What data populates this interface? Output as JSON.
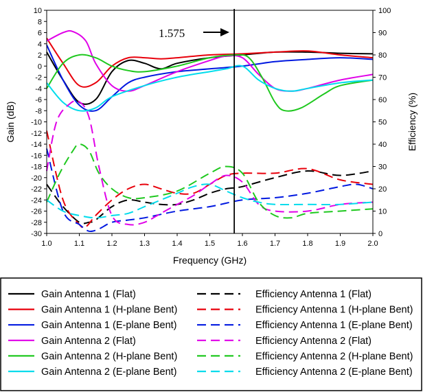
{
  "chart_data": {
    "type": "line",
    "xlabel": "Frequency (GHz)",
    "ylabel": "Gain (dB)",
    "y2label": "Efficiency (%)",
    "xlim": [
      1.0,
      2.0
    ],
    "ylim": [
      -30,
      10
    ],
    "y2lim": [
      0,
      100
    ],
    "xticks": [
      "1.0",
      "1.1",
      "1.2",
      "1.3",
      "1.4",
      "1.5",
      "1.6",
      "1.7",
      "1.8",
      "1.9",
      "2.0"
    ],
    "yticks": [
      "-30",
      "-28",
      "-26",
      "-24",
      "-22",
      "-20",
      "-18",
      "-16",
      "-14",
      "-12",
      "-10",
      "-8",
      "-6",
      "-4",
      "-2",
      "0",
      "2",
      "4",
      "6",
      "8",
      "10"
    ],
    "y2ticks": [
      "0",
      "10",
      "20",
      "30",
      "40",
      "50",
      "60",
      "70",
      "80",
      "90",
      "100"
    ],
    "annotation": {
      "text": "1.575",
      "x": 1.575
    },
    "colors": {
      "black": "#000000",
      "red": "#e8000b",
      "blue": "#0018e0",
      "magenta": "#e000e8",
      "green": "#1ec81e",
      "cyan": "#00dcec"
    },
    "series": [
      {
        "name": "Gain Antenna 1 (Flat)",
        "axis": "left",
        "style": "solid",
        "color": "black",
        "x": [
          1.0,
          1.05,
          1.1,
          1.15,
          1.2,
          1.25,
          1.3,
          1.35,
          1.4,
          1.5,
          1.6,
          1.7,
          1.8,
          1.9,
          2.0
        ],
        "y": [
          2.5,
          -2.5,
          -6.5,
          -6.0,
          -1.0,
          1.0,
          0.5,
          -0.5,
          0.5,
          1.5,
          2.0,
          2.5,
          2.5,
          2.3,
          2.2
        ]
      },
      {
        "name": "Gain Antenna 1 (H-plane Bent)",
        "axis": "left",
        "style": "solid",
        "color": "red",
        "x": [
          1.0,
          1.05,
          1.1,
          1.15,
          1.2,
          1.25,
          1.3,
          1.35,
          1.4,
          1.5,
          1.6,
          1.7,
          1.8,
          1.9,
          2.0
        ],
        "y": [
          5.0,
          0.5,
          -3.5,
          -3.0,
          0.0,
          1.5,
          1.5,
          1.3,
          1.5,
          2.0,
          2.2,
          2.5,
          2.7,
          2.0,
          1.5
        ]
      },
      {
        "name": "Gain Antenna 1 (E-plane Bent)",
        "axis": "left",
        "style": "solid",
        "color": "blue",
        "x": [
          1.0,
          1.05,
          1.1,
          1.15,
          1.2,
          1.25,
          1.3,
          1.4,
          1.5,
          1.6,
          1.7,
          1.8,
          1.9,
          2.0
        ],
        "y": [
          3.8,
          -2.5,
          -7.0,
          -8.0,
          -5.5,
          -3.0,
          -2.0,
          -1.0,
          -0.5,
          0.0,
          0.8,
          1.2,
          1.5,
          1.2
        ]
      },
      {
        "name": "Gain Antenna 2 (Flat)",
        "axis": "left",
        "style": "solid",
        "color": "magenta",
        "x": [
          1.0,
          1.05,
          1.08,
          1.12,
          1.15,
          1.2,
          1.25,
          1.3,
          1.4,
          1.5,
          1.55,
          1.6,
          1.65,
          1.7,
          1.75,
          1.8,
          1.9,
          2.0
        ],
        "y": [
          4.5,
          6.0,
          6.2,
          4.5,
          0.5,
          -3.5,
          -4.5,
          -3.5,
          -1.0,
          1.0,
          1.8,
          1.5,
          -1.5,
          -4.0,
          -4.5,
          -4.0,
          -2.5,
          -1.5
        ]
      },
      {
        "name": "Gain Antenna 2 (H-plane Bent)",
        "axis": "left",
        "style": "solid",
        "color": "green",
        "x": [
          1.0,
          1.05,
          1.1,
          1.15,
          1.2,
          1.25,
          1.3,
          1.4,
          1.5,
          1.58,
          1.62,
          1.66,
          1.7,
          1.73,
          1.78,
          1.85,
          1.9,
          2.0
        ],
        "y": [
          -4.0,
          0.5,
          2.0,
          1.5,
          0.0,
          -0.8,
          -1.0,
          0.0,
          1.5,
          2.0,
          1.5,
          -2.0,
          -6.5,
          -8.0,
          -7.5,
          -5.0,
          -3.5,
          -2.5
        ]
      },
      {
        "name": "Gain Antenna 2 (E-plane Bent)",
        "axis": "left",
        "style": "solid",
        "color": "cyan",
        "x": [
          1.0,
          1.05,
          1.1,
          1.15,
          1.2,
          1.3,
          1.4,
          1.5,
          1.55,
          1.6,
          1.65,
          1.7,
          1.75,
          1.8,
          1.9,
          2.0
        ],
        "y": [
          -3.0,
          -6.5,
          -8.0,
          -7.5,
          -5.5,
          -3.5,
          -2.0,
          -1.0,
          -0.5,
          0.0,
          -2.5,
          -4.0,
          -4.5,
          -4.0,
          -3.0,
          -2.5
        ]
      },
      {
        "name": "Efficiency Antenna 1 (Flat)",
        "axis": "right",
        "style": "dashed",
        "color": "black",
        "x": [
          1.0,
          1.05,
          1.1,
          1.13,
          1.15,
          1.2,
          1.25,
          1.3,
          1.35,
          1.4,
          1.45,
          1.5,
          1.55,
          1.6,
          1.7,
          1.8,
          1.9,
          2.0
        ],
        "y": [
          22,
          12,
          5,
          5,
          6,
          12,
          15,
          14,
          13,
          13,
          15,
          18,
          20,
          21,
          25,
          28,
          26,
          28
        ]
      },
      {
        "name": "Efficiency Antenna 1 (H-plane Bent)",
        "axis": "right",
        "style": "dashed",
        "color": "red",
        "x": [
          1.0,
          1.05,
          1.1,
          1.12,
          1.15,
          1.2,
          1.25,
          1.3,
          1.35,
          1.4,
          1.45,
          1.5,
          1.55,
          1.6,
          1.7,
          1.8,
          1.9,
          2.0
        ],
        "y": [
          46,
          15,
          4,
          3,
          8,
          15,
          20,
          22,
          20,
          18,
          18,
          22,
          26,
          27,
          27,
          29,
          24,
          22
        ]
      },
      {
        "name": "Efficiency Antenna 1 (E-plane Bent)",
        "axis": "right",
        "style": "dashed",
        "color": "blue",
        "x": [
          1.0,
          1.05,
          1.1,
          1.13,
          1.16,
          1.2,
          1.25,
          1.3,
          1.4,
          1.5,
          1.6,
          1.7,
          1.8,
          1.9,
          1.95,
          2.0
        ],
        "y": [
          38,
          10,
          4,
          1,
          2,
          5,
          6,
          7,
          10,
          12,
          15,
          16,
          18,
          21,
          22,
          20
        ]
      },
      {
        "name": "Efficiency Antenna 2 (Flat)",
        "axis": "right",
        "style": "dashed",
        "color": "magenta",
        "x": [
          1.0,
          1.03,
          1.07,
          1.1,
          1.13,
          1.16,
          1.2,
          1.25,
          1.3,
          1.35,
          1.4,
          1.45,
          1.5,
          1.55,
          1.6,
          1.65,
          1.7,
          1.8,
          1.9,
          2.0
        ],
        "y": [
          28,
          50,
          58,
          59,
          52,
          30,
          8,
          4,
          5,
          9,
          13,
          17,
          22,
          26,
          23,
          13,
          10,
          10,
          13,
          14
        ]
      },
      {
        "name": "Efficiency Antenna 2 (H-plane Bent)",
        "axis": "right",
        "style": "dashed",
        "color": "green",
        "x": [
          1.0,
          1.04,
          1.08,
          1.1,
          1.13,
          1.16,
          1.2,
          1.25,
          1.3,
          1.4,
          1.5,
          1.55,
          1.6,
          1.65,
          1.7,
          1.75,
          1.8,
          1.9,
          2.0
        ],
        "y": [
          14,
          27,
          37,
          40,
          37,
          27,
          20,
          16,
          16,
          19,
          27,
          30,
          27,
          14,
          8,
          7,
          9,
          10,
          11
        ]
      },
      {
        "name": "Efficiency Antenna 2 (E-plane Bent)",
        "axis": "right",
        "style": "dashed",
        "color": "cyan",
        "x": [
          1.0,
          1.05,
          1.1,
          1.15,
          1.2,
          1.25,
          1.3,
          1.35,
          1.4,
          1.45,
          1.5,
          1.55,
          1.6,
          1.65,
          1.7,
          1.8,
          1.9,
          2.0
        ],
        "y": [
          15,
          10,
          8,
          7,
          8,
          9,
          12,
          15,
          18,
          21,
          22,
          19,
          16,
          14,
          13,
          13,
          13,
          14
        ]
      }
    ]
  }
}
